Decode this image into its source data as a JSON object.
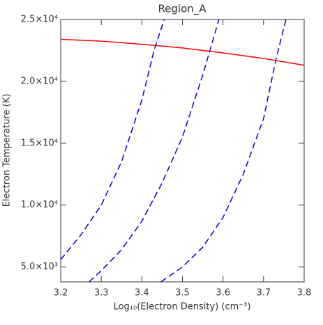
{
  "chart_data": {
    "type": "line",
    "title": "Region_A",
    "x_label": "Log₁₀(Electron Density) (cm⁻³)",
    "y_label": "Electron Temperature (K)",
    "xlim": [
      3.2,
      3.8
    ],
    "xticks": [
      3.2,
      3.3,
      3.4,
      3.5,
      3.6,
      3.7,
      3.8
    ],
    "ylim": [
      3800,
      25000
    ],
    "yticks": [
      {
        "value": 5000,
        "label": "5.0×10³"
      },
      {
        "value": 10000,
        "label": "1.0×10⁴"
      },
      {
        "value": 15000,
        "label": "1.5×10⁴"
      },
      {
        "value": 20000,
        "label": "2.0×10⁴"
      },
      {
        "value": 25000,
        "label": "2.5×10⁴"
      }
    ],
    "series": [
      {
        "color": "#ff0000",
        "style": "solid",
        "x": [
          3.2,
          3.3,
          3.4,
          3.5,
          3.6,
          3.7,
          3.8
        ],
        "values": [
          23400,
          23250,
          23000,
          22700,
          22300,
          21850,
          21300
        ]
      },
      {
        "color": "#0000dd",
        "style": "dashed",
        "x": [
          3.2,
          3.25,
          3.3,
          3.35,
          3.4,
          3.43,
          3.455
        ],
        "values": [
          5600,
          7600,
          10000,
          13500,
          18500,
          22500,
          25000
        ]
      },
      {
        "color": "#0000dd",
        "style": "dashed",
        "x": [
          3.27,
          3.3,
          3.35,
          3.4,
          3.45,
          3.5,
          3.55,
          3.59
        ],
        "values": [
          3800,
          4700,
          6400,
          8700,
          11800,
          15500,
          20500,
          25000
        ]
      },
      {
        "color": "#0000dd",
        "style": "dashed",
        "x": [
          3.447,
          3.5,
          3.55,
          3.6,
          3.65,
          3.7,
          3.73,
          3.755
        ],
        "values": [
          3800,
          5000,
          6600,
          9000,
          12500,
          17000,
          21700,
          25000
        ]
      }
    ]
  }
}
